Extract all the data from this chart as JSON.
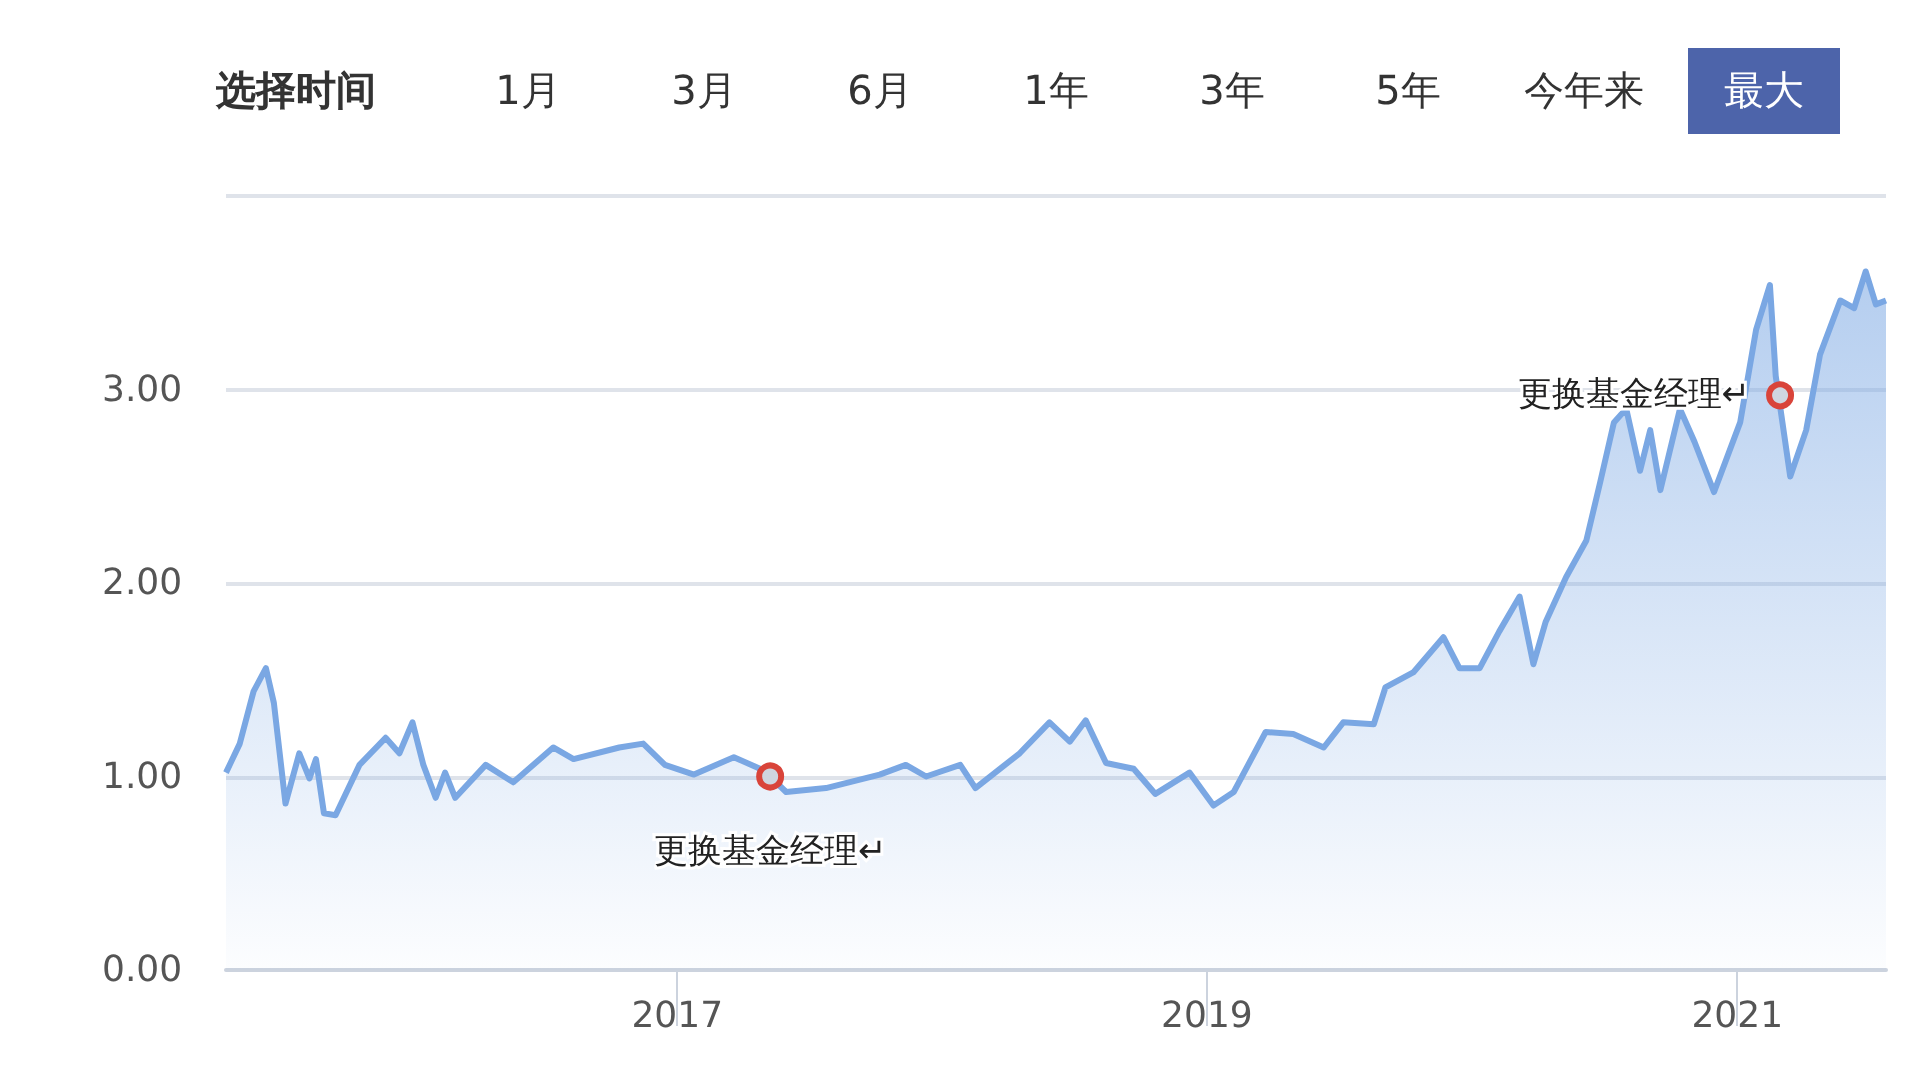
{
  "chart_data": {
    "type": "area",
    "color": "#7aa7e3",
    "x": [
      "2015-04-20",
      "2015-05-09",
      "2015-05-28",
      "2015-06-14",
      "2015-06-25",
      "2015-07-11",
      "2015-07-30",
      "2015-08-13",
      "2015-08-22",
      "2015-09-02",
      "2015-09-18",
      "2015-10-21",
      "2015-11-26",
      "2015-12-15",
      "2016-01-02",
      "2016-01-17",
      "2016-02-03",
      "2016-02-16",
      "2016-03-01",
      "2016-04-12",
      "2016-05-20",
      "2016-07-14",
      "2016-08-11",
      "2016-10-13",
      "2016-11-15",
      "2016-12-15",
      "2017-01-24",
      "2017-03-20",
      "2017-04-25",
      "2017-05-09",
      "2017-05-31",
      "2017-07-25",
      "2017-10-07",
      "2017-11-12",
      "2017-12-10",
      "2018-01-26",
      "2018-02-16",
      "2018-04-18",
      "2018-05-29",
      "2018-06-26",
      "2018-07-18",
      "2018-08-15",
      "2018-09-22",
      "2018-10-22",
      "2018-12-08",
      "2019-01-10",
      "2019-02-07",
      "2019-03-23",
      "2019-04-30",
      "2019-06-11",
      "2019-07-08",
      "2019-08-19",
      "2019-09-04",
      "2019-10-13",
      "2019-11-23",
      "2019-12-15",
      "2020-01-12",
      "2020-02-08",
      "2020-03-07",
      "2020-03-26",
      "2020-04-12",
      "2020-05-10",
      "2020-06-07",
      "2020-06-26",
      "2020-07-15",
      "2020-08-01",
      "2020-08-20",
      "2020-09-03",
      "2020-09-17",
      "2020-10-14",
      "2020-11-03",
      "2020-11-30",
      "2021-01-05",
      "2021-01-27",
      "2021-02-15",
      "2021-02-23",
      "2021-03-15",
      "2021-04-06",
      "2021-04-25",
      "2021-05-23",
      "2021-06-11",
      "2021-06-27",
      "2021-07-11",
      "2021-07-25"
    ],
    "values": [
      1.02,
      1.17,
      1.44,
      1.56,
      1.38,
      0.86,
      1.12,
      0.99,
      1.09,
      0.81,
      0.8,
      1.06,
      1.2,
      1.12,
      1.28,
      1.06,
      0.89,
      1.02,
      0.89,
      1.06,
      0.97,
      1.15,
      1.09,
      1.15,
      1.17,
      1.06,
      1.01,
      1.1,
      1.04,
      1.0,
      0.92,
      0.94,
      1.01,
      1.06,
      1.0,
      1.06,
      0.94,
      1.12,
      1.28,
      1.18,
      1.29,
      1.07,
      1.04,
      0.91,
      1.02,
      0.85,
      0.92,
      1.23,
      1.22,
      1.15,
      1.28,
      1.27,
      1.46,
      1.54,
      1.72,
      1.56,
      1.56,
      1.75,
      1.93,
      1.58,
      1.8,
      2.03,
      2.22,
      2.52,
      2.83,
      2.9,
      2.58,
      2.79,
      2.48,
      2.9,
      2.73,
      2.47,
      2.83,
      3.31,
      3.54,
      3.07,
      2.55,
      2.79,
      3.18,
      3.46,
      3.42,
      3.61,
      3.44,
      3.46
    ],
    "xlim": [
      "2015-04-20",
      "2021-07-25"
    ],
    "xticks": [
      "2017",
      "2019",
      "2021"
    ],
    "ylim": [
      0,
      4
    ],
    "yticks": [
      {
        "value": 0,
        "label": "0.00"
      },
      {
        "value": 1,
        "label": "1.00"
      },
      {
        "value": 2,
        "label": "2.00"
      },
      {
        "value": 3,
        "label": "3.00"
      },
      {
        "value": 4,
        "label": null
      }
    ],
    "grid": "y",
    "marker": "none",
    "annotations": [
      "选择时间",
      "1月",
      "3月",
      "6月",
      "1年",
      "3年",
      "5年",
      "今年来",
      "最大",
      {
        "text": "更换基金经理↵",
        "x": "2017-05-09",
        "y": 1.0
      },
      {
        "text": "更换基金经理↵",
        "x": "2021-03-01",
        "y": 2.97
      }
    ]
  }
}
